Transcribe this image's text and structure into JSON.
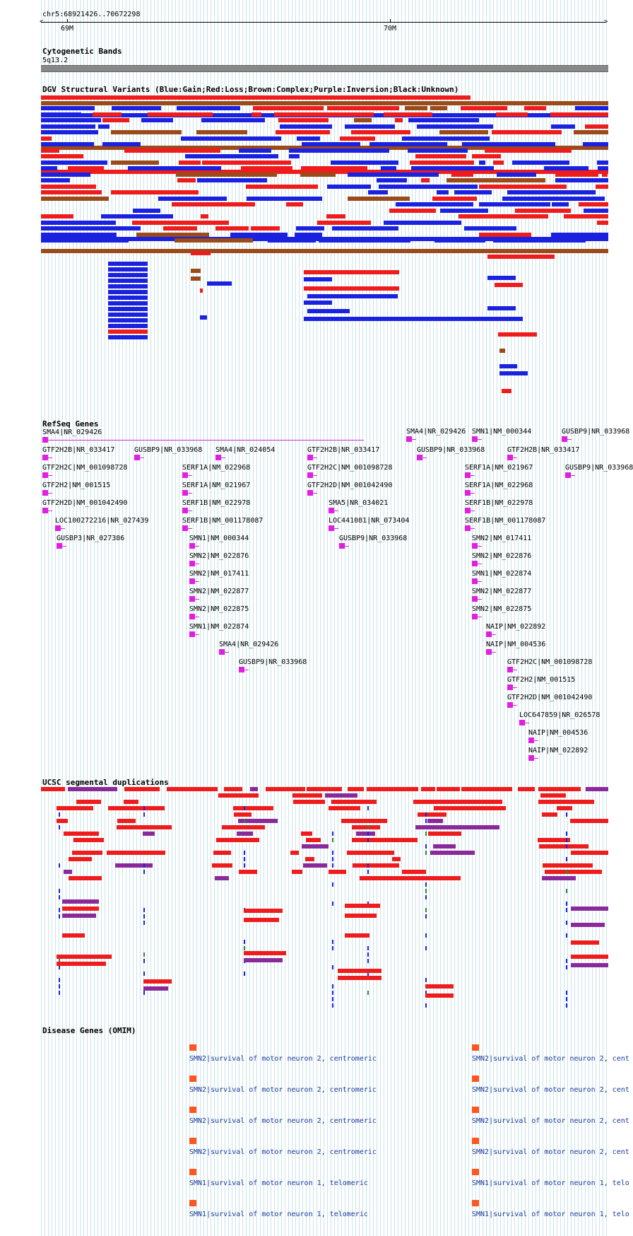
{
  "position": "chr5:68921426..70672298",
  "ruler": {
    "ticks": [
      "69M",
      "70M"
    ]
  },
  "tracks": {
    "cytoband": {
      "title": "Cytogenetic Bands",
      "band": "5q13.2"
    },
    "dgv": {
      "title": "DGV Structural Variants (Blue:Gain;Red:Loss;Brown:Complex;Purple:Inversion;Black:Unknown)"
    },
    "refseq": {
      "title": "RefSeq Genes"
    },
    "segdup": {
      "title": "UCSC segmental duplications"
    },
    "omim": {
      "title": "Disease Genes (OMIM)"
    }
  },
  "colors": {
    "gain": "#1a22e0",
    "loss": "#ee1c1c",
    "complex": "#9b4a1a",
    "inversion": "#8a2a9a",
    "gene": "#e020e0",
    "omim": "#ff5520",
    "omim_text": "#1a3a9a",
    "grid": "#c9e3ea"
  },
  "refseq_genes": [
    {
      "label": "SMA4|NR_029426"
    },
    {
      "label": "GTF2H2B|NR_033417"
    },
    {
      "label": "GUSBP9|NR_033968"
    },
    {
      "label": "SMA4|NR_024054"
    },
    {
      "label": "GTF2H2B|NR_033417"
    },
    {
      "label": "SMA4|NR_029426"
    },
    {
      "label": "SMN1|NM_000344"
    },
    {
      "label": "GUSBP9|NR_033968"
    },
    {
      "label": "GUSBP9|NR_033968"
    },
    {
      "label": "GTF2H2B|NR_033417"
    },
    {
      "label": "GTF2H2C|NM_001098728"
    },
    {
      "label": "SERF1A|NM_022968"
    },
    {
      "label": "GTF2H2C|NM_001098728"
    },
    {
      "label": "SERF1A|NM_021967"
    },
    {
      "label": "GUSBP9|NR_033968"
    },
    {
      "label": "GTF2H2|NM_001515"
    },
    {
      "label": "SERF1A|NM_021967"
    },
    {
      "label": "GTF2H2D|NM_001042490"
    },
    {
      "label": "SERF1A|NM_022968"
    },
    {
      "label": "GTF2H2D|NM_001042490"
    },
    {
      "label": "SERF1B|NM_022978"
    },
    {
      "label": "SMA5|NR_034021"
    },
    {
      "label": "SERF1B|NM_022978"
    },
    {
      "label": "LOC100272216|NR_027439"
    },
    {
      "label": "SERF1B|NM_001178087"
    },
    {
      "label": "LOC441081|NR_073404"
    },
    {
      "label": "SERF1B|NM_001178087"
    },
    {
      "label": "GUSBP3|NR_027386"
    },
    {
      "label": "SMN1|NM_000344"
    },
    {
      "label": "GUSBP9|NR_033968"
    },
    {
      "label": "SMN2|NM_017411"
    },
    {
      "label": "SMN2|NM_022876"
    },
    {
      "label": "SMN2|NM_022876"
    },
    {
      "label": "SMN2|NM_017411"
    },
    {
      "label": "SMN1|NM_022874"
    },
    {
      "label": "SMN2|NM_022877"
    },
    {
      "label": "SMN2|NM_022877"
    },
    {
      "label": "SMN2|NM_022875"
    },
    {
      "label": "SMN2|NM_022875"
    },
    {
      "label": "NAIP|NM_022892"
    },
    {
      "label": "SMN1|NM_022874"
    },
    {
      "label": "NAIP|NM_004536"
    },
    {
      "label": "SMA4|NR_029426"
    },
    {
      "label": "GTF2H2C|NM_001098728"
    },
    {
      "label": "GUSBP9|NR_033968"
    },
    {
      "label": "GTF2H2|NM_001515"
    },
    {
      "label": "GTF2H2D|NM_001042490"
    },
    {
      "label": "LOC647859|NR_026578"
    },
    {
      "label": "NAIP|NM_004536"
    },
    {
      "label": "NAIP|NM_022892"
    }
  ],
  "omim_genes": [
    {
      "label": "SMN2|survival of motor neuron 2, centromeric"
    },
    {
      "label": "SMN2|survival of motor neuron 2, cent"
    },
    {
      "label": "SMN2|survival of motor neuron 2, centromeric"
    },
    {
      "label": "SMN2|survival of motor neuron 2, cent"
    },
    {
      "label": "SMN2|survival of motor neuron 2, centromeric"
    },
    {
      "label": "SMN2|survival of motor neuron 2, cent"
    },
    {
      "label": "SMN2|survival of motor neuron 2, centromeric"
    },
    {
      "label": "SMN2|survival of motor neuron 2, cent"
    },
    {
      "label": "SMN1|survival of motor neuron 1, telomeric"
    },
    {
      "label": "SMN1|survival of motor neuron 1, telo"
    },
    {
      "label": "SMN1|survival of motor neuron 1, telomeric"
    },
    {
      "label": "SMN1|survival of motor neuron 1, telo"
    }
  ]
}
